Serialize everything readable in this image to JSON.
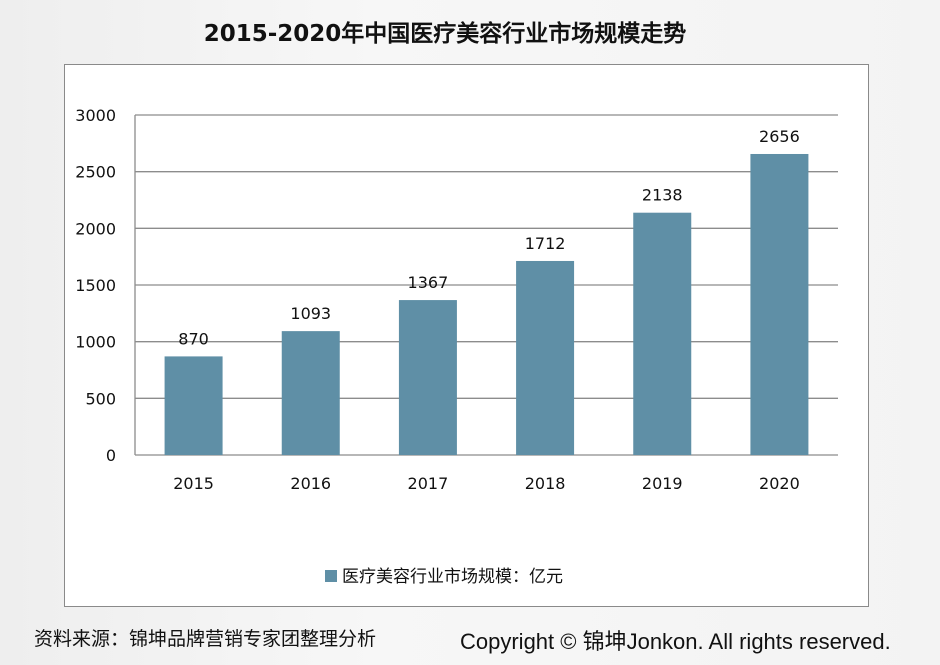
{
  "chart_data": {
    "type": "bar",
    "title": "2015-2020年中国医疗美容行业市场规模走势",
    "categories": [
      "2015",
      "2016",
      "2017",
      "2018",
      "2019",
      "2020"
    ],
    "series": [
      {
        "name": "医疗美容行业市场规模：亿元",
        "values": [
          870,
          1093,
          1367,
          1712,
          2138,
          2656
        ]
      }
    ],
    "ylim": [
      0,
      3000
    ],
    "yticks": [
      0,
      500,
      1000,
      1500,
      2000,
      2500,
      3000
    ],
    "grid": true,
    "legend": "bottom",
    "bar_color": "#5f8fa6",
    "data_labels": true
  },
  "footer": {
    "source": "资料来源：锦坤品牌营销专家团整理分析",
    "copyright": "Copyright © 锦坤Jonkon. All rights reserved."
  }
}
